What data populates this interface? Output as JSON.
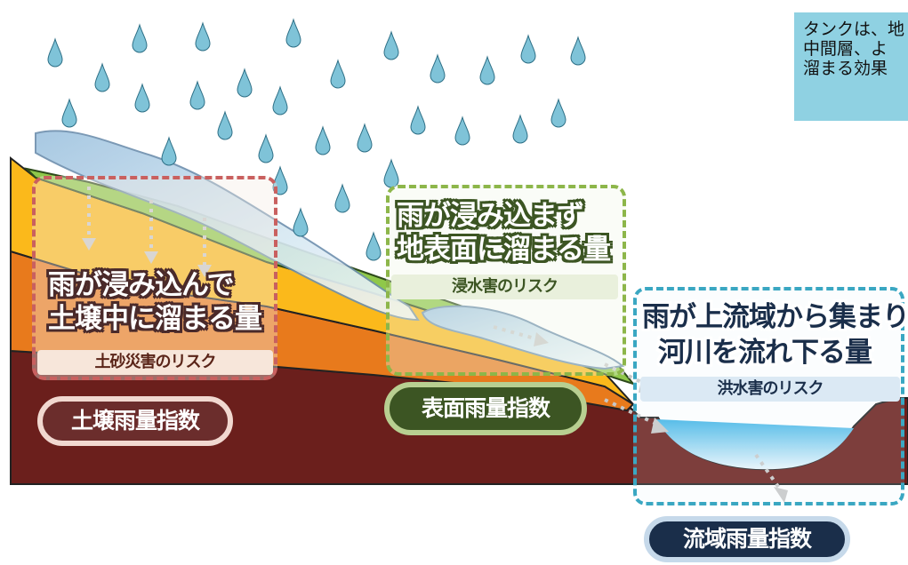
{
  "note": {
    "lines": [
      "タンクは、地",
      "中間層、よ",
      "溜まる効果"
    ]
  },
  "soil": {
    "title_line1": "雨が浸み込んで",
    "title_line2": "土壌中に溜まる量",
    "risk": "土砂災害のリスク",
    "index": "土壌雨量指数"
  },
  "surface": {
    "title_line1": "雨が浸み込まず",
    "title_line2": "地表面に溜まる量",
    "risk": "浸水害のリスク",
    "index": "表面雨量指数"
  },
  "basin": {
    "title_line1": "雨が上流域から集まり",
    "title_line2": "河川を流れ下る量",
    "risk": "洪水害のリスク",
    "index": "流域雨量指数"
  },
  "colors": {
    "bedrock": "#6b1f1c",
    "orange_layer": "#e87a1c",
    "yellow_layer": "#fbb91b",
    "grass": "#8fc84a",
    "water_surface": "#b9dcef",
    "rain": "#7fc3d8",
    "river": "#6ec6e8"
  }
}
